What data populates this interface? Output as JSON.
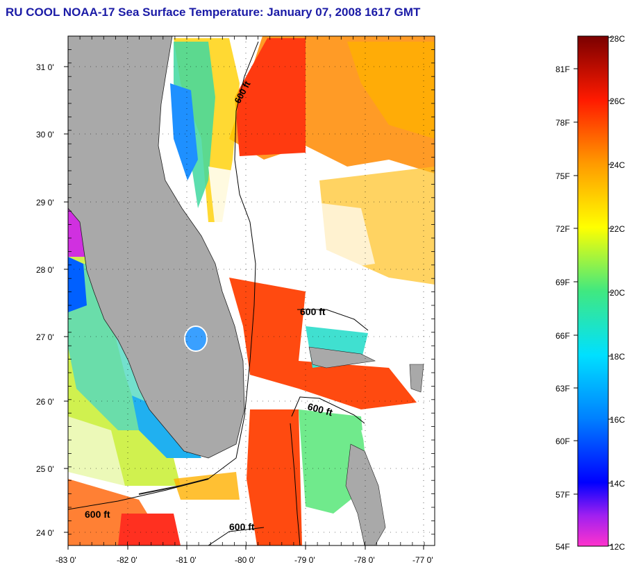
{
  "title": "RU COOL  NOAA-17  Sea Surface Temperature:  January 07, 2008 1617 GMT",
  "map": {
    "lat_ticks": [
      "31 0'",
      "30 0'",
      "29 0'",
      "28 0'",
      "27 0'",
      "26 0'",
      "25 0'",
      "24 0'"
    ],
    "lon_ticks": [
      "-83 0'",
      "-82 0'",
      "-81 0'",
      "-80 0'",
      "-79 0'",
      "-78 0'",
      "-77 0'"
    ],
    "contour_labels": [
      "600 ft",
      "600 ft",
      "600 ft",
      "600 ft",
      "600 ft"
    ],
    "colors": {
      "land": "#a9a9a9",
      "cloud": "#ffffff"
    }
  },
  "colorbar": {
    "fahrenheit": [
      "81F",
      "78F",
      "75F",
      "72F",
      "69F",
      "66F",
      "63F",
      "60F",
      "57F",
      "54F"
    ],
    "celsius": [
      "28C",
      "26C",
      "24C",
      "22C",
      "20C",
      "18C",
      "16C",
      "14C",
      "12C"
    ],
    "range_celsius": [
      12,
      28
    ]
  }
}
